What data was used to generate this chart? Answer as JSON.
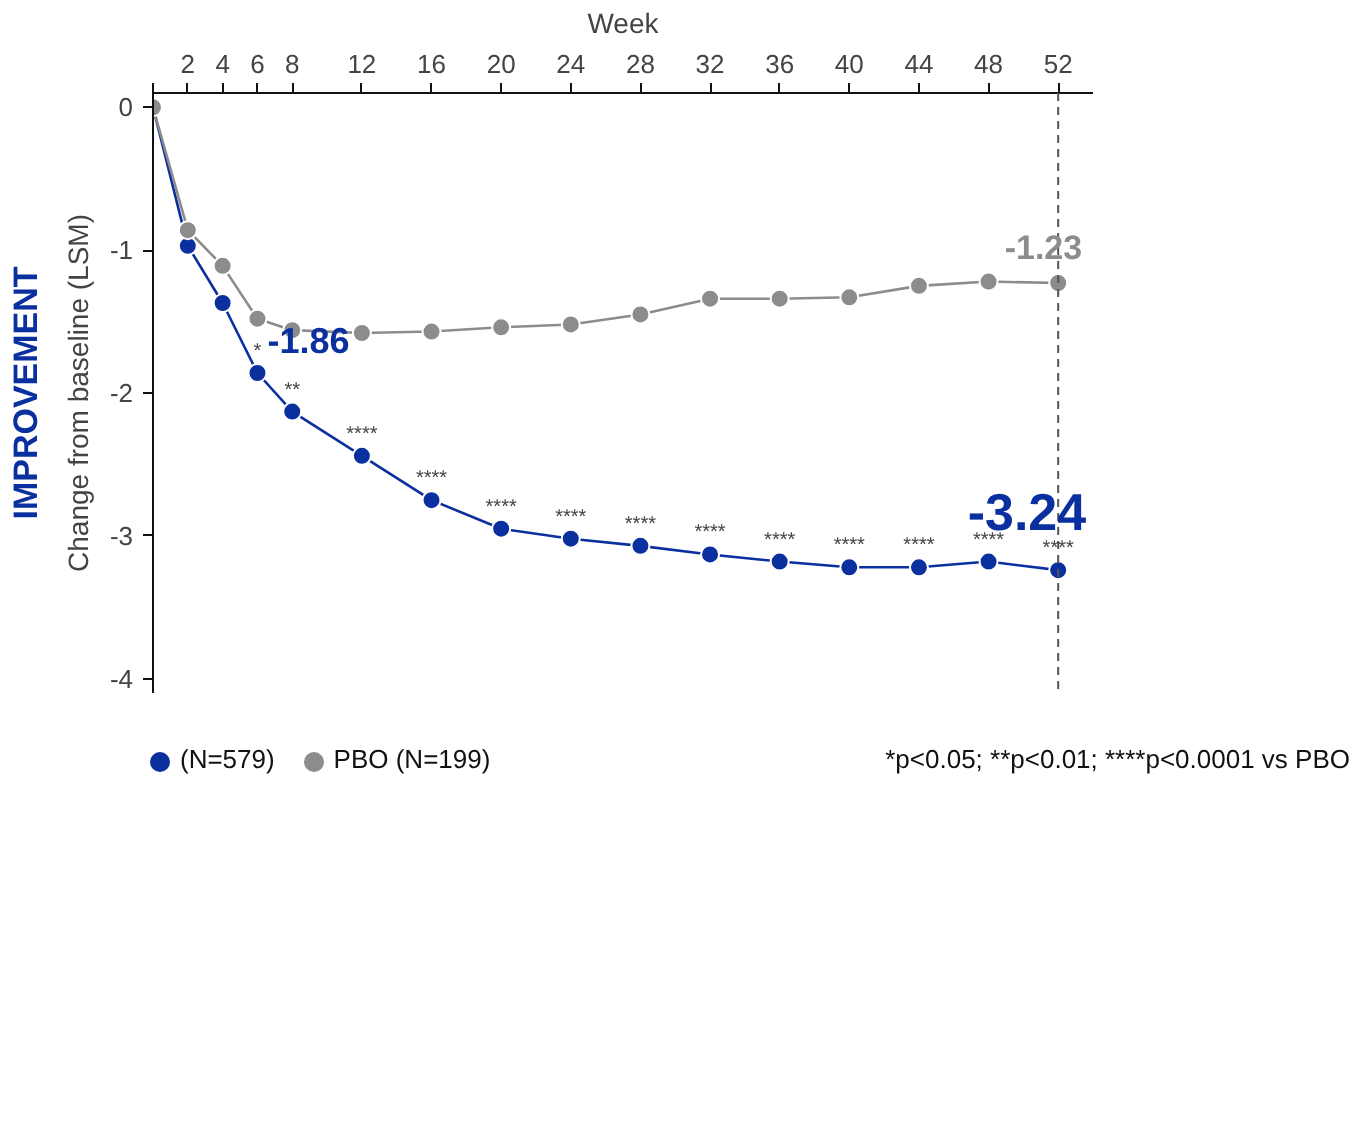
{
  "chart_data": {
    "type": "line",
    "xlabel": "Week",
    "ylabel": "Change from baseline (LSM)",
    "x": [
      0,
      2,
      4,
      6,
      8,
      12,
      16,
      20,
      24,
      28,
      32,
      36,
      40,
      44,
      48,
      52
    ],
    "xlim": [
      0,
      54
    ],
    "ylim": [
      -4.1,
      0.1
    ],
    "xticks": [
      {
        "value": 0,
        "label": null
      },
      2,
      4,
      6,
      8,
      12,
      16,
      20,
      24,
      28,
      32,
      36,
      40,
      44,
      48,
      52
    ],
    "yticks": [
      0,
      -1,
      -2,
      -3,
      -4
    ],
    "series": [
      {
        "name": "(N=579)",
        "color": "#0a2f9e",
        "values": [
          0,
          -0.97,
          -1.37,
          -1.86,
          -2.13,
          -2.44,
          -2.75,
          -2.95,
          -3.02,
          -3.07,
          -3.13,
          -3.18,
          -3.22,
          -3.22,
          -3.18,
          -3.24
        ],
        "value_labels": [
          null,
          null,
          null,
          "-1.86",
          null,
          null,
          null,
          null,
          null,
          null,
          null,
          null,
          null,
          null,
          null,
          "-3.24"
        ]
      },
      {
        "name": "PBO (N=199)",
        "color": "#8c8c8c",
        "values": [
          0,
          -0.86,
          -1.11,
          -1.48,
          -1.56,
          -1.58,
          -1.57,
          -1.54,
          -1.52,
          -1.45,
          -1.34,
          -1.34,
          -1.33,
          -1.25,
          -1.22,
          -1.23
        ],
        "value_labels": [
          null,
          null,
          null,
          null,
          null,
          null,
          null,
          null,
          null,
          null,
          null,
          null,
          null,
          null,
          null,
          "-1.23"
        ]
      }
    ],
    "marker": "circle",
    "line_style": "solid",
    "grid": false,
    "legend": "bottom",
    "ref_lines": [
      {
        "axis": "x",
        "value": 52,
        "label": null,
        "color": "#555555",
        "line_style": "dashed"
      }
    ],
    "annotations": [
      {
        "text": "*",
        "x": 6,
        "y": -1.86
      },
      {
        "text": "**",
        "x": 8,
        "y": -2.13
      },
      {
        "text": "****",
        "x": 12,
        "y": -2.44
      },
      {
        "text": "****",
        "x": 16,
        "y": -2.75
      },
      {
        "text": "****",
        "x": 20,
        "y": -2.95
      },
      {
        "text": "****",
        "x": 24,
        "y": -3.02
      },
      {
        "text": "****",
        "x": 28,
        "y": -3.07
      },
      {
        "text": "****",
        "x": 32,
        "y": -3.13
      },
      {
        "text": "****",
        "x": 36,
        "y": -3.18
      },
      {
        "text": "****",
        "x": 40,
        "y": -3.22
      },
      {
        "text": "****",
        "x": 44,
        "y": -3.22
      },
      {
        "text": "****",
        "x": 48,
        "y": -3.18
      },
      {
        "text": "****",
        "x": 52,
        "y": -3.24
      },
      "IMPROVEMENT",
      "*p<0.05; **p<0.01; ****p<0.0001 vs PBO"
    ]
  }
}
